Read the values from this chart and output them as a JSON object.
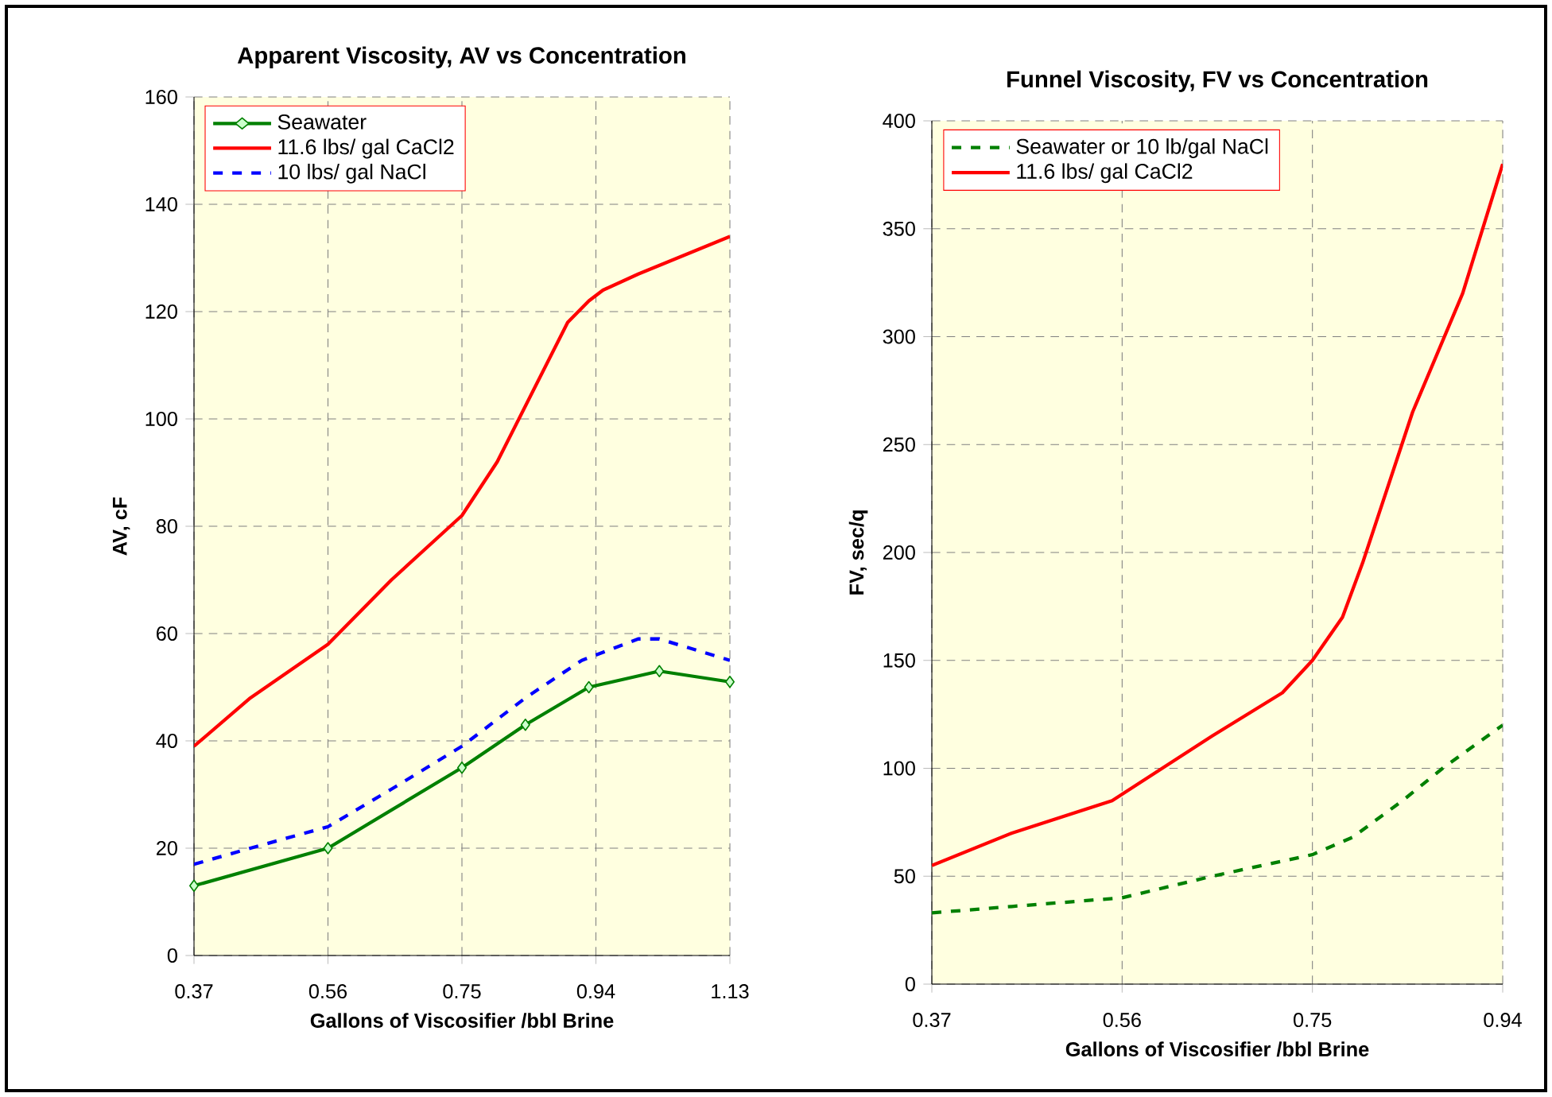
{
  "chart_data": [
    {
      "type": "line",
      "title": "Apparent Viscosity, AV vs Concentration",
      "xlabel": "Gallons of Viscosifier /bbl Brine",
      "ylabel": "AV, cF",
      "xlim": [
        0.37,
        1.13
      ],
      "xticks": [
        0.37,
        0.56,
        0.75,
        0.94,
        1.13
      ],
      "ylim": [
        0,
        160
      ],
      "yticks": [
        0,
        20,
        40,
        60,
        80,
        100,
        120,
        140,
        160
      ],
      "grid": true,
      "legend": "top left",
      "series": [
        {
          "name": "Seawater",
          "color": "#008000",
          "marker": "diamond",
          "line_style": "solid",
          "x": [
            0.37,
            0.56,
            0.75,
            0.84,
            0.93,
            1.03,
            1.13
          ],
          "values": [
            13,
            20,
            35,
            43,
            50,
            53,
            51
          ]
        },
        {
          "name": "11.6 lbs/ gal CaCl2",
          "color": "#ff0000",
          "line_style": "solid",
          "x": [
            0.37,
            0.45,
            0.56,
            0.65,
            0.75,
            0.8,
            0.85,
            0.9,
            0.93,
            0.95,
            1.0,
            1.13
          ],
          "values": [
            39,
            48,
            58,
            70,
            82,
            92,
            105,
            118,
            122,
            124,
            127,
            134
          ]
        },
        {
          "name": "10 lbs/ gal NaCl",
          "color": "#0000ff",
          "line_style": "dashed",
          "x": [
            0.37,
            0.45,
            0.56,
            0.65,
            0.75,
            0.84,
            0.92,
            1.0,
            1.03,
            1.13
          ],
          "values": [
            17,
            20,
            24,
            31,
            39,
            48,
            55,
            59,
            59,
            55
          ]
        }
      ]
    },
    {
      "type": "line",
      "title": "Funnel Viscosity, FV vs Concentration",
      "xlabel": "Gallons of Viscosifier /bbl Brine",
      "ylabel": "FV, sec/q",
      "xlim": [
        0.37,
        0.94
      ],
      "xticks": [
        0.37,
        0.56,
        0.75,
        0.94
      ],
      "ylim": [
        0,
        400
      ],
      "yticks": [
        0,
        50,
        100,
        150,
        200,
        250,
        300,
        350,
        400
      ],
      "grid": true,
      "legend": "top left",
      "series": [
        {
          "name": "Seawater or 10 lb/gal NaCl",
          "color": "#008000",
          "line_style": "dashed",
          "x": [
            0.37,
            0.45,
            0.56,
            0.65,
            0.75,
            0.79,
            0.84,
            0.88,
            0.94
          ],
          "values": [
            33,
            36,
            40,
            50,
            60,
            68,
            85,
            100,
            120
          ]
        },
        {
          "name": "11.6 lbs/ gal CaCl2",
          "color": "#ff0000",
          "line_style": "solid",
          "x": [
            0.37,
            0.45,
            0.55,
            0.65,
            0.72,
            0.75,
            0.78,
            0.8,
            0.85,
            0.9,
            0.94
          ],
          "values": [
            55,
            70,
            85,
            115,
            135,
            150,
            170,
            195,
            265,
            320,
            380
          ]
        }
      ]
    }
  ]
}
